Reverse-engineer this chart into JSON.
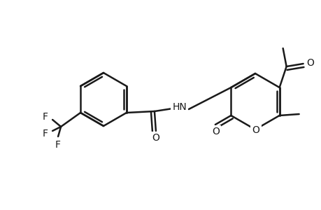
{
  "bg": "#ffffff",
  "lc": "#1a1a1a",
  "lw": 1.8,
  "fs": 10,
  "figsize": [
    4.6,
    3.0
  ],
  "dpi": 100,
  "xlim": [
    0,
    460
  ],
  "ylim": [
    0,
    300
  ]
}
